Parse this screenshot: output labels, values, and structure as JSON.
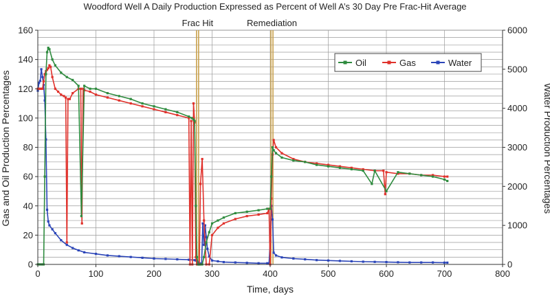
{
  "chart_data": {
    "type": "line",
    "title": "Woodford Well A Daily Production Expressed as Percent of Well A’s 30 Day Pre Frac-Hit Average",
    "xlabel": "Time, days",
    "ylabel_left": "Gas and Oil Production Percentages",
    "ylabel_right": "Water Production Percentages",
    "xlim": [
      0,
      800
    ],
    "ylim_left": [
      0,
      160
    ],
    "ylim_right": [
      0,
      6000
    ],
    "x_ticks": [
      0,
      100,
      200,
      300,
      400,
      500,
      600,
      700,
      800
    ],
    "y_ticks_left": [
      0,
      20,
      40,
      60,
      80,
      100,
      120,
      140,
      160
    ],
    "y_ticks_right": [
      0,
      1000,
      2000,
      3000,
      4000,
      5000,
      6000
    ],
    "grid": true,
    "legend_position": "top-right",
    "annotations": [
      {
        "label": "Frac Hit",
        "x": 275,
        "color": "#c9a04a"
      },
      {
        "label": "Remediation",
        "x": 403,
        "color": "#c9a04a"
      }
    ],
    "series": [
      {
        "name": "Oil",
        "axis": "left",
        "color": "#2e8b3e",
        "x": [
          0,
          2,
          5,
          8,
          10,
          12,
          14,
          16,
          18,
          20,
          25,
          30,
          40,
          50,
          60,
          70,
          75,
          80,
          90,
          100,
          120,
          140,
          160,
          180,
          200,
          220,
          240,
          260,
          265,
          268,
          270,
          272,
          274,
          276,
          278,
          280,
          283,
          286,
          290,
          295,
          300,
          310,
          320,
          340,
          360,
          380,
          395,
          400,
          402,
          404,
          406,
          410,
          420,
          440,
          460,
          480,
          500,
          520,
          540,
          560,
          575,
          580,
          600,
          620,
          640,
          660,
          680,
          700,
          705
        ],
        "y": [
          0,
          0,
          0,
          0,
          0,
          60,
          130,
          145,
          148,
          147,
          140,
          136,
          131,
          128,
          126,
          122,
          33,
          122,
          120,
          120,
          117,
          115,
          113,
          110,
          108,
          106,
          104,
          101,
          100,
          99,
          98,
          40,
          5,
          0,
          0,
          0,
          0,
          5,
          15,
          22,
          28,
          30,
          32,
          35,
          36,
          37,
          38,
          38,
          60,
          80,
          78,
          76,
          73,
          71,
          70,
          68,
          67,
          66,
          65,
          64,
          55,
          64,
          50,
          63,
          62,
          61,
          60,
          58,
          57
        ]
      },
      {
        "name": "Gas",
        "axis": "left",
        "color": "#e0312b",
        "x": [
          0,
          2,
          4,
          6,
          8,
          10,
          12,
          14,
          16,
          18,
          20,
          22,
          25,
          30,
          35,
          40,
          45,
          48,
          50,
          52,
          55,
          60,
          70,
          74,
          76,
          78,
          80,
          90,
          100,
          120,
          140,
          160,
          180,
          200,
          220,
          240,
          260,
          262,
          264,
          266,
          268,
          270,
          272,
          274,
          276,
          278,
          280,
          283,
          286,
          290,
          295,
          300,
          310,
          320,
          340,
          360,
          380,
          395,
          398,
          400,
          402,
          404,
          406,
          410,
          420,
          440,
          460,
          480,
          500,
          520,
          540,
          560,
          580,
          595,
          598,
          600,
          620,
          640,
          660,
          680,
          700,
          705
        ],
        "y": [
          120,
          120,
          120,
          120,
          120,
          125,
          130,
          132,
          133,
          134,
          136,
          135,
          128,
          120,
          118,
          116,
          115,
          114,
          15,
          113,
          113,
          117,
          120,
          120,
          28,
          120,
          119,
          118,
          116,
          114,
          112,
          110,
          108,
          106,
          104,
          102,
          100,
          0,
          98,
          0,
          110,
          97,
          5,
          0,
          0,
          0,
          55,
          72,
          30,
          0,
          0,
          20,
          25,
          28,
          31,
          33,
          34,
          35,
          38,
          0,
          45,
          75,
          85,
          80,
          76,
          72,
          70,
          69,
          68,
          67,
          66,
          65,
          64,
          64,
          48,
          63,
          62,
          62,
          61,
          61,
          60,
          60
        ]
      },
      {
        "name": "Water",
        "axis": "right",
        "color": "#2b45b8",
        "x": [
          0,
          2,
          4,
          6,
          8,
          10,
          12,
          14,
          16,
          18,
          20,
          25,
          30,
          40,
          50,
          60,
          70,
          80,
          100,
          120,
          140,
          160,
          180,
          200,
          220,
          240,
          260,
          270,
          272,
          274,
          276,
          278,
          280,
          282,
          284,
          286,
          288,
          290,
          292,
          295,
          300,
          310,
          320,
          340,
          360,
          380,
          395,
          398,
          400,
          402,
          404,
          406,
          410,
          420,
          440,
          460,
          480,
          500,
          520,
          540,
          560,
          580,
          600,
          620,
          640,
          660,
          680,
          700,
          705
        ],
        "y": [
          4450,
          4650,
          4700,
          5000,
          4800,
          4600,
          4200,
          3200,
          1400,
          1100,
          1000,
          900,
          800,
          620,
          500,
          420,
          360,
          310,
          270,
          230,
          210,
          190,
          170,
          150,
          140,
          130,
          120,
          110,
          100,
          80,
          50,
          30,
          20,
          10,
          1050,
          500,
          1000,
          700,
          400,
          200,
          100,
          80,
          60,
          50,
          40,
          30,
          30,
          20,
          600,
          1500,
          1150,
          300,
          230,
          180,
          150,
          130,
          110,
          100,
          90,
          80,
          70,
          65,
          60,
          55,
          50,
          50,
          50,
          45,
          45
        ]
      }
    ]
  }
}
